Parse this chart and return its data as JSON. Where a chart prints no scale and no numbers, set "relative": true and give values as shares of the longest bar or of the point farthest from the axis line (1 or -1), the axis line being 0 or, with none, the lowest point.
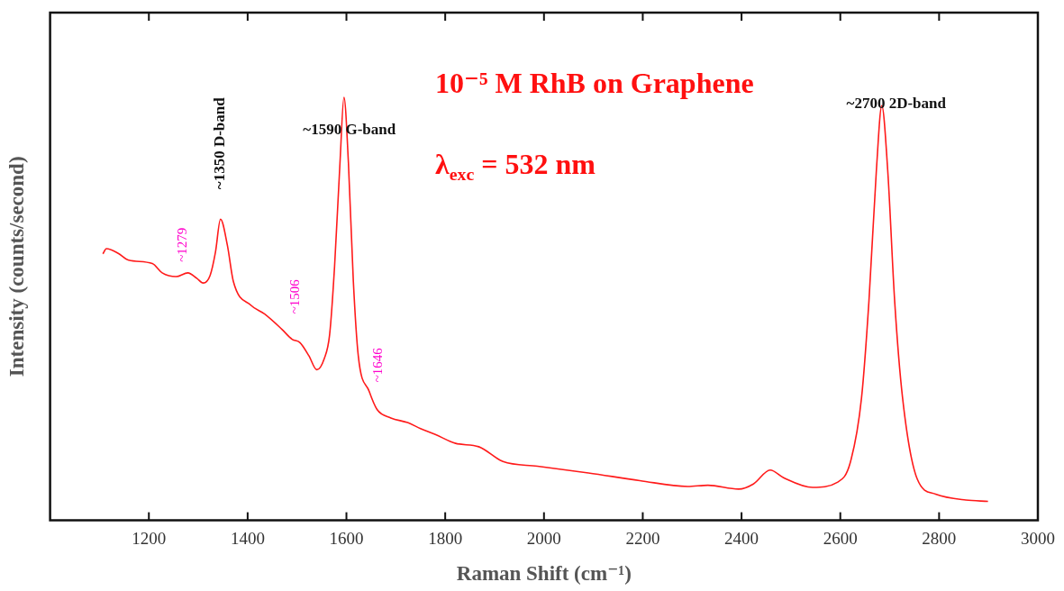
{
  "chart_data": {
    "type": "line",
    "relative": true,
    "xlabel": "Raman Shift (cm⁻¹)",
    "ylabel": "Intensity (counts/second)",
    "xlim": [
      1000,
      3000
    ],
    "xticks": [
      1200,
      1400,
      1600,
      1800,
      2000,
      2200,
      2400,
      2600,
      2800,
      3000
    ],
    "grid": false,
    "legend": false,
    "marker": "none",
    "line_style": "solid",
    "annotations": [
      {
        "text": "~1350 D-band",
        "x": 1345,
        "y": 0.712
      },
      {
        "text": "~1590 G-band",
        "x": 1595,
        "y": 1.0
      },
      {
        "text": "~2700 2D-band",
        "x": 2684,
        "y": 0.98
      },
      {
        "text": "~1279",
        "x": 1279,
        "y": 0.585
      },
      {
        "text": "~1506",
        "x": 1506,
        "y": 0.42
      },
      {
        "text": "~1646",
        "x": 1646,
        "y": 0.305
      },
      "10⁻⁵ M RhB on Graphene",
      "λ$_{exc}$ = 532 nm"
    ],
    "series": [
      {
        "color": "#ff1a1a",
        "x": [
          1107,
          1114,
          1138,
          1159,
          1207,
          1227,
          1255,
          1279,
          1297,
          1310,
          1324,
          1335,
          1345,
          1359,
          1371,
          1407,
          1434,
          1469,
          1490,
          1506,
          1524,
          1540,
          1555,
          1566,
          1576,
          1587,
          1595,
          1604,
          1614,
          1624,
          1646,
          1662,
          1690,
          1724,
          1750,
          1780,
          1821,
          1868,
          1917,
          1987,
          2090,
          2194,
          2291,
          2332,
          2394,
          2424,
          2458,
          2485,
          2544,
          2594,
          2620,
          2643,
          2658,
          2673,
          2684,
          2696,
          2710,
          2726,
          2756,
          2793,
          2854,
          2899
        ],
        "values": [
          0.63,
          0.642,
          0.631,
          0.615,
          0.607,
          0.585,
          0.576,
          0.585,
          0.572,
          0.561,
          0.579,
          0.635,
          0.712,
          0.65,
          0.565,
          0.508,
          0.488,
          0.452,
          0.428,
          0.42,
          0.389,
          0.356,
          0.382,
          0.439,
          0.6,
          0.846,
          1.0,
          0.846,
          0.565,
          0.389,
          0.305,
          0.262,
          0.242,
          0.231,
          0.217,
          0.203,
          0.182,
          0.174,
          0.139,
          0.128,
          0.112,
          0.094,
          0.08,
          0.083,
          0.074,
          0.086,
          0.119,
          0.101,
          0.078,
          0.09,
          0.136,
          0.29,
          0.519,
          0.827,
          0.98,
          0.827,
          0.519,
          0.29,
          0.097,
          0.062,
          0.048,
          0.045
        ]
      }
    ]
  }
}
